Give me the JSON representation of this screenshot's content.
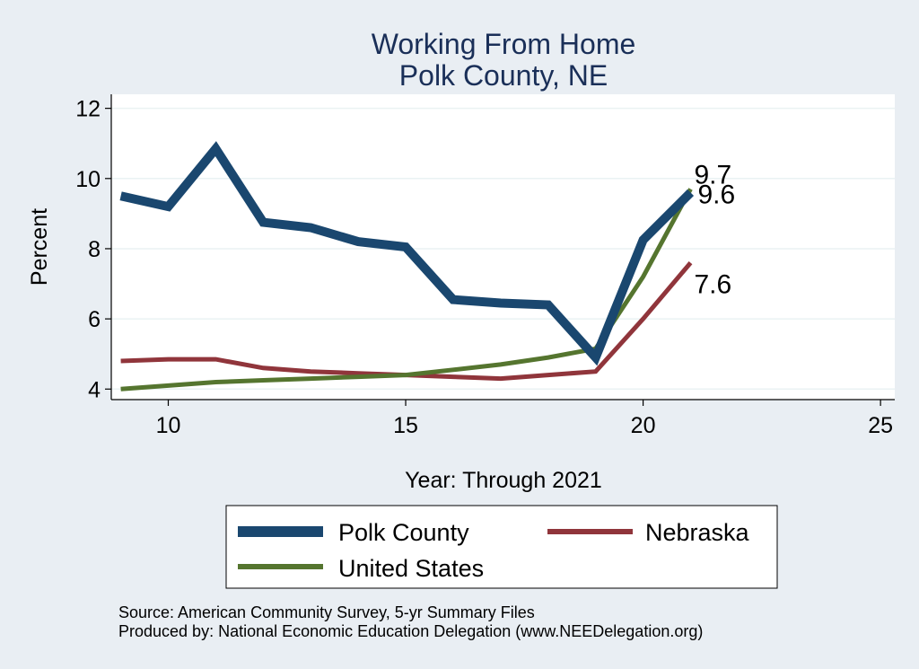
{
  "chart_data": {
    "type": "line",
    "title": [
      "Working From Home",
      "Polk County, NE"
    ],
    "xlabel": "Year: Through 2021",
    "ylabel": "Percent",
    "xlim": [
      8.8,
      25.3
    ],
    "ylim": [
      3.7,
      12.4
    ],
    "xticks": [
      10,
      15,
      20,
      25
    ],
    "yticks": [
      4,
      6,
      8,
      10,
      12
    ],
    "grid": true,
    "legend_position": "bottom",
    "series": [
      {
        "name": "Polk County",
        "color": "#1a476f",
        "x": [
          9,
          10,
          11,
          12,
          13,
          14,
          15,
          16,
          17,
          18,
          19,
          20,
          21
        ],
        "y": [
          9.5,
          9.2,
          10.85,
          8.75,
          8.6,
          8.2,
          8.05,
          6.55,
          6.45,
          6.4,
          4.9,
          8.25,
          9.6
        ],
        "end_label": "9.6"
      },
      {
        "name": "Nebraska",
        "color": "#90353b",
        "x": [
          9,
          10,
          11,
          12,
          13,
          14,
          15,
          16,
          17,
          18,
          19,
          20,
          21
        ],
        "y": [
          4.8,
          4.85,
          4.85,
          4.6,
          4.5,
          4.45,
          4.4,
          4.35,
          4.3,
          4.4,
          4.5,
          6.0,
          7.6
        ],
        "end_label": "7.6"
      },
      {
        "name": "United States",
        "color": "#55752f",
        "x": [
          9,
          10,
          11,
          12,
          13,
          14,
          15,
          16,
          17,
          18,
          19,
          20,
          21
        ],
        "y": [
          4.0,
          4.1,
          4.2,
          4.25,
          4.3,
          4.35,
          4.4,
          4.55,
          4.7,
          4.9,
          5.15,
          7.2,
          9.7
        ],
        "end_label": "9.7"
      }
    ],
    "notes": [
      "Source: American Community Survey, 5-yr Summary Files",
      "Produced by: National Economic Education Delegation (www.NEEDelegation.org)"
    ]
  }
}
